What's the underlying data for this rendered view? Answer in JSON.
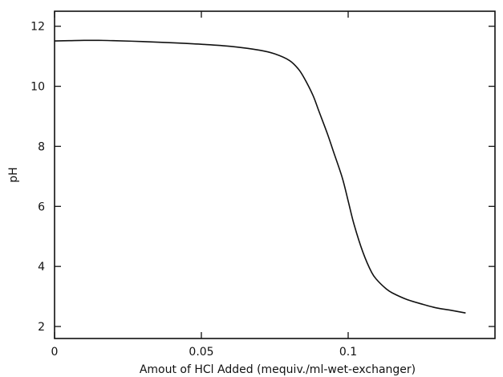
{
  "chart_data": {
    "type": "line",
    "xlabel": "Amout of HCl Added (mequiv./ml-wet-exchanger)",
    "ylabel": "pH",
    "xlim": [
      0,
      0.15
    ],
    "ylim": [
      1.6,
      12.5
    ],
    "x_ticks": [
      0,
      0.05,
      0.1
    ],
    "x_tick_labels": [
      "0",
      "0.05",
      "0.1"
    ],
    "y_ticks": [
      2,
      4,
      6,
      8,
      10,
      12
    ],
    "y_tick_labels": [
      "2",
      "4",
      "6",
      "8",
      "10",
      "12"
    ],
    "grid": false,
    "series": [
      {
        "x": [
          0,
          0.005,
          0.01,
          0.015,
          0.02,
          0.03,
          0.04,
          0.05,
          0.06,
          0.07,
          0.075,
          0.08,
          0.083,
          0.085,
          0.088,
          0.09,
          0.093,
          0.095,
          0.098,
          0.1,
          0.102,
          0.105,
          0.108,
          0.11,
          0.113,
          0.115,
          0.12,
          0.125,
          0.13,
          0.135,
          0.14
        ],
        "y": [
          11.51,
          11.52,
          11.53,
          11.53,
          11.52,
          11.49,
          11.45,
          11.4,
          11.33,
          11.2,
          11.08,
          10.86,
          10.58,
          10.28,
          9.7,
          9.18,
          8.4,
          7.82,
          6.95,
          6.18,
          5.4,
          4.48,
          3.8,
          3.53,
          3.25,
          3.12,
          2.9,
          2.75,
          2.62,
          2.54,
          2.45
        ],
        "color": "#111111"
      }
    ]
  }
}
